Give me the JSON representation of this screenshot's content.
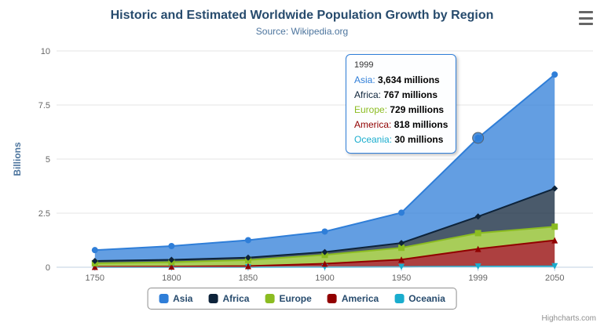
{
  "chart_data": {
    "type": "area",
    "stacking": "normal",
    "title": "Historic and Estimated Worldwide Population Growth by Region",
    "subtitle": "Source: Wikipedia.org",
    "categories": [
      "1750",
      "1800",
      "1850",
      "1900",
      "1950",
      "1999",
      "2050"
    ],
    "xlabel": "",
    "ylabel": "Billions",
    "ylim": [
      0,
      10
    ],
    "yticks": [
      0,
      2.5,
      5,
      7.5,
      10
    ],
    "ytick_labels": [
      "0",
      "2.5",
      "5",
      "7.5",
      "10"
    ],
    "grid": true,
    "legend_position": "bottom",
    "unit": "millions",
    "series": [
      {
        "name": "Asia",
        "color": "#2f7ed8",
        "marker": "circle",
        "values": [
          502,
          635,
          809,
          947,
          1402,
          3634,
          5268
        ]
      },
      {
        "name": "Africa",
        "color": "#0d233a",
        "marker": "diamond",
        "values": [
          106,
          107,
          111,
          133,
          221,
          767,
          1766
        ]
      },
      {
        "name": "Europe",
        "color": "#8bbc21",
        "marker": "square",
        "values": [
          163,
          203,
          276,
          408,
          547,
          729,
          628
        ]
      },
      {
        "name": "America",
        "color": "#910000",
        "marker": "triangle",
        "values": [
          18,
          31,
          54,
          156,
          339,
          818,
          1201
        ]
      },
      {
        "name": "Oceania",
        "color": "#1aadce",
        "marker": "triangle-down",
        "values": [
          2,
          2,
          2,
          6,
          13,
          30,
          46
        ]
      }
    ],
    "hover": {
      "series": "Asia",
      "category": "1999"
    }
  },
  "tooltip": {
    "header": "1999",
    "rows": [
      {
        "name": "Asia",
        "color": "#2f7ed8",
        "value": "3,634 millions"
      },
      {
        "name": "Africa",
        "color": "#0d233a",
        "value": "767 millions"
      },
      {
        "name": "Europe",
        "color": "#8bbc21",
        "value": "729 millions"
      },
      {
        "name": "America",
        "color": "#910000",
        "value": "818 millions"
      },
      {
        "name": "Oceania",
        "color": "#1aadce",
        "value": "30 millions"
      }
    ]
  },
  "credits": "Highcharts.com"
}
